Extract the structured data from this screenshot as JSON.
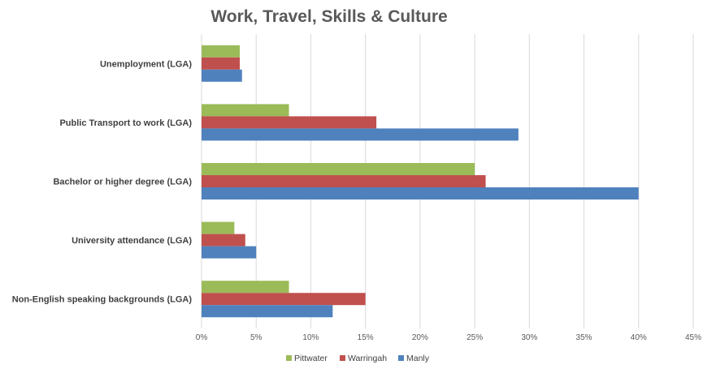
{
  "chart_data": {
    "type": "bar",
    "orientation": "horizontal",
    "title": "Work, Travel, Skills & Culture",
    "xlabel": "",
    "ylabel": "",
    "categories": [
      "Unemployment (LGA)",
      "Public Transport to work (LGA)",
      "Bachelor or higher degree (LGA)",
      "University attendance (LGA)",
      "Non-English speaking backgrounds (LGA)"
    ],
    "series": [
      {
        "name": "Pittwater",
        "color": "#9bbb59",
        "values": [
          3.5,
          8,
          25,
          3,
          8
        ]
      },
      {
        "name": "Warringah",
        "color": "#c0504d",
        "values": [
          3.5,
          16,
          26,
          4,
          15
        ]
      },
      {
        "name": "Manly",
        "color": "#4f81bd",
        "values": [
          3.7,
          29,
          40,
          5,
          12
        ]
      }
    ],
    "xlim": [
      0,
      45
    ],
    "xticks": [
      "0%",
      "5%",
      "10%",
      "15%",
      "20%",
      "25%",
      "30%",
      "35%",
      "40%",
      "45%"
    ],
    "grid": true,
    "legend_position": "bottom"
  }
}
